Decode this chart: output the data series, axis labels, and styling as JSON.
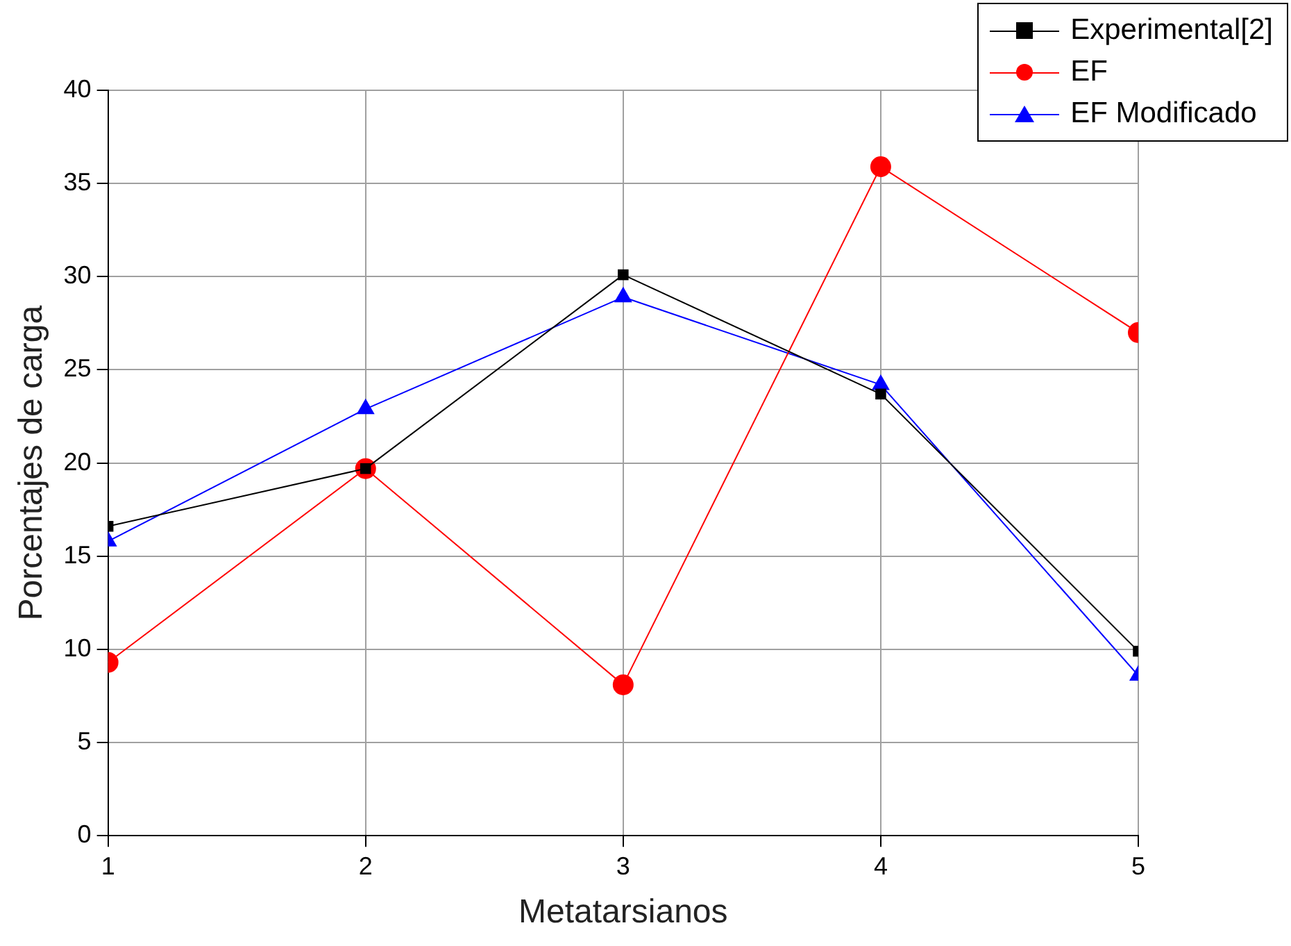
{
  "chart_data": {
    "type": "line",
    "xlabel": "Metatarsianos",
    "ylabel": "Porcentajes de carga",
    "x": [
      1,
      2,
      3,
      4,
      5
    ],
    "series": [
      {
        "name": "Experimental[2]",
        "color": "#000000",
        "marker": "square",
        "values": [
          16.6,
          19.7,
          30.1,
          23.7,
          9.9
        ]
      },
      {
        "name": "EF",
        "color": "#ff0000",
        "marker": "circle",
        "values": [
          9.3,
          19.7,
          8.1,
          35.9,
          27.0
        ]
      },
      {
        "name": "EF Modificado",
        "color": "#0000ff",
        "marker": "triangle",
        "values": [
          15.8,
          22.9,
          28.9,
          24.2,
          8.6
        ]
      }
    ],
    "xlim": [
      1,
      5
    ],
    "xticks": [
      1,
      2,
      3,
      4,
      5
    ],
    "ylim": [
      0,
      40
    ],
    "yticks": [
      0,
      5,
      10,
      15,
      20,
      25,
      30,
      35,
      40
    ],
    "grid": true,
    "legend": "top right",
    "line_style": "solid"
  }
}
